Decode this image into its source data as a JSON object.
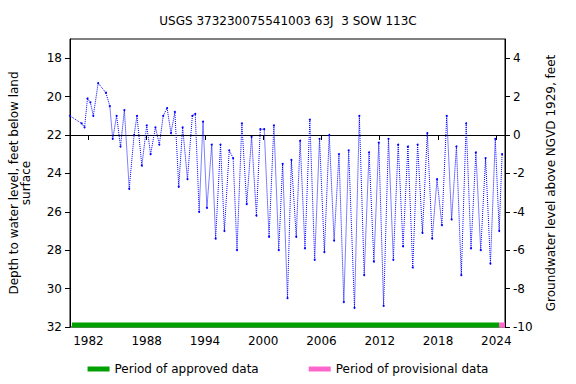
{
  "chart_data": {
    "type": "line",
    "title": "USGS 373230075541003 63J  3 SOW 113C",
    "xlim": [
      1980.1,
      2024.9
    ],
    "xticks": [
      1982,
      1988,
      1994,
      2000,
      2006,
      2012,
      2018,
      2024
    ],
    "ylabel": "Depth to water level, feet below land\nsurface",
    "ylim": [
      17,
      32
    ],
    "yticks": [
      18,
      20,
      22,
      24,
      26,
      28,
      30,
      32
    ],
    "y2label": "Groundwater level above NGVD 1929, feet",
    "y2lim": [
      -10,
      5
    ],
    "y2ticks": [
      -10,
      -8,
      -6,
      -4,
      -2,
      0,
      2,
      4
    ],
    "legend": "bottom",
    "series": [
      {
        "color": "#0000ff",
        "line_style": "dotted",
        "marker": "dot",
        "x": [
          1980.1,
          1981.3,
          1981.6,
          1981.9,
          1982.2,
          1982.5,
          1983.0,
          1983.8,
          1984.2,
          1984.5,
          1984.9,
          1985.3,
          1985.7,
          1986.2,
          1986.7,
          1987.0,
          1987.5,
          1988.0,
          1988.4,
          1988.9,
          1989.3,
          1989.7,
          1990.1,
          1990.5,
          1990.9,
          1991.3,
          1991.7,
          1992.2,
          1992.7,
          1993.0,
          1993.4,
          1993.8,
          1994.2,
          1994.7,
          1995.1,
          1995.6,
          1996.0,
          1996.5,
          1996.9,
          1997.3,
          1997.8,
          1998.3,
          1998.8,
          1999.3,
          1999.7,
          2000.1,
          2000.6,
          2001.1,
          2001.6,
          2002.0,
          2002.5,
          2002.9,
          2003.4,
          2003.8,
          2004.3,
          2004.8,
          2005.3,
          2005.8,
          2006.3,
          2006.8,
          2007.3,
          2007.8,
          2008.3,
          2008.8,
          2009.4,
          2009.9,
          2010.4,
          2010.9,
          2011.4,
          2011.9,
          2012.4,
          2012.9,
          2013.4,
          2013.9,
          2014.4,
          2014.9,
          2015.4,
          2015.9,
          2016.4,
          2016.9,
          2017.4,
          2017.9,
          2018.4,
          2018.9,
          2019.4,
          2019.9,
          2020.4,
          2020.9,
          2021.4,
          2021.9,
          2022.4,
          2022.9,
          2023.4,
          2023.9,
          2024.3,
          2024.6
        ],
        "values": [
          21.0,
          21.4,
          21.6,
          20.1,
          20.3,
          21.0,
          19.3,
          19.8,
          20.5,
          22.2,
          21.0,
          22.6,
          20.7,
          24.8,
          22.0,
          21.0,
          23.6,
          21.5,
          23.0,
          21.6,
          22.5,
          21.0,
          20.6,
          21.9,
          20.8,
          24.7,
          21.6,
          24.3,
          21.0,
          20.9,
          26.0,
          21.3,
          25.8,
          22.5,
          27.4,
          22.5,
          27.0,
          22.8,
          23.2,
          28.0,
          21.4,
          25.6,
          22.1,
          26.2,
          21.7,
          21.7,
          27.3,
          21.5,
          28.0,
          23.5,
          30.5,
          23.3,
          27.3,
          22.3,
          27.9,
          21.2,
          28.5,
          22.2,
          28.1,
          22.0,
          27.5,
          23.0,
          30.7,
          22.8,
          31.0,
          21.0,
          29.3,
          22.9,
          28.6,
          22.4,
          30.9,
          22.2,
          28.5,
          22.5,
          27.8,
          22.6,
          28.9,
          22.5,
          27.1,
          21.9,
          27.4,
          24.3,
          26.7,
          21.0,
          26.4,
          22.6,
          29.3,
          21.4,
          27.9,
          22.9,
          28.0,
          23.2,
          28.7,
          22.2,
          27.0,
          23.0
        ]
      },
      {
        "name": "Period of approved data",
        "color": "#00a000",
        "line_style": "solid",
        "marker": "none",
        "x": [
          1980.3,
          2024.3
        ],
        "values": [
          31.9,
          31.9
        ]
      },
      {
        "name": "Period of provisional data",
        "color": "#ff66cc",
        "line_style": "solid",
        "marker": "none",
        "x": [
          2024.3,
          2024.9
        ],
        "values": [
          31.9,
          31.9
        ]
      }
    ]
  }
}
